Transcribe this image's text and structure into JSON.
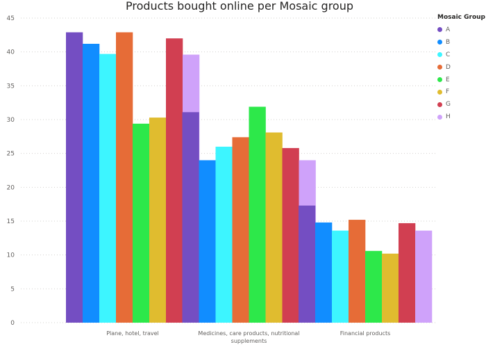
{
  "chart_data": {
    "type": "bar",
    "title": "Products bought online per Mosaic group",
    "xlabel": "",
    "ylabel": "",
    "ylim": [
      0,
      45
    ],
    "yticks": [
      0,
      5,
      10,
      15,
      20,
      25,
      30,
      35,
      40,
      45
    ],
    "grid": true,
    "legend_position": "right",
    "legend_title": "Mosaic Group",
    "categories": [
      [
        "Plane, hotel, travel"
      ],
      [
        "Medicines, care products, nutritional",
        "supplements"
      ],
      [
        "Financial products"
      ]
    ],
    "series": [
      {
        "name": "A",
        "color": "#744EC2",
        "values": [
          42.9,
          31.1,
          17.3
        ]
      },
      {
        "name": "B",
        "color": "#118DFF",
        "values": [
          41.2,
          24.0,
          14.8
        ]
      },
      {
        "name": "C",
        "color": "#3DF5FF",
        "values": [
          39.7,
          26.0,
          13.6
        ]
      },
      {
        "name": "D",
        "color": "#E66C37",
        "values": [
          42.9,
          27.4,
          15.2
        ]
      },
      {
        "name": "E",
        "color": "#2DE84A",
        "values": [
          29.4,
          31.9,
          10.6
        ]
      },
      {
        "name": "F",
        "color": "#E0BC2F",
        "values": [
          30.3,
          28.1,
          10.2
        ]
      },
      {
        "name": "G",
        "color": "#D13F51",
        "values": [
          42.0,
          25.8,
          14.7
        ]
      },
      {
        "name": "H",
        "color": "#CFA2FA",
        "values": [
          39.6,
          24.0,
          13.6
        ]
      }
    ]
  }
}
